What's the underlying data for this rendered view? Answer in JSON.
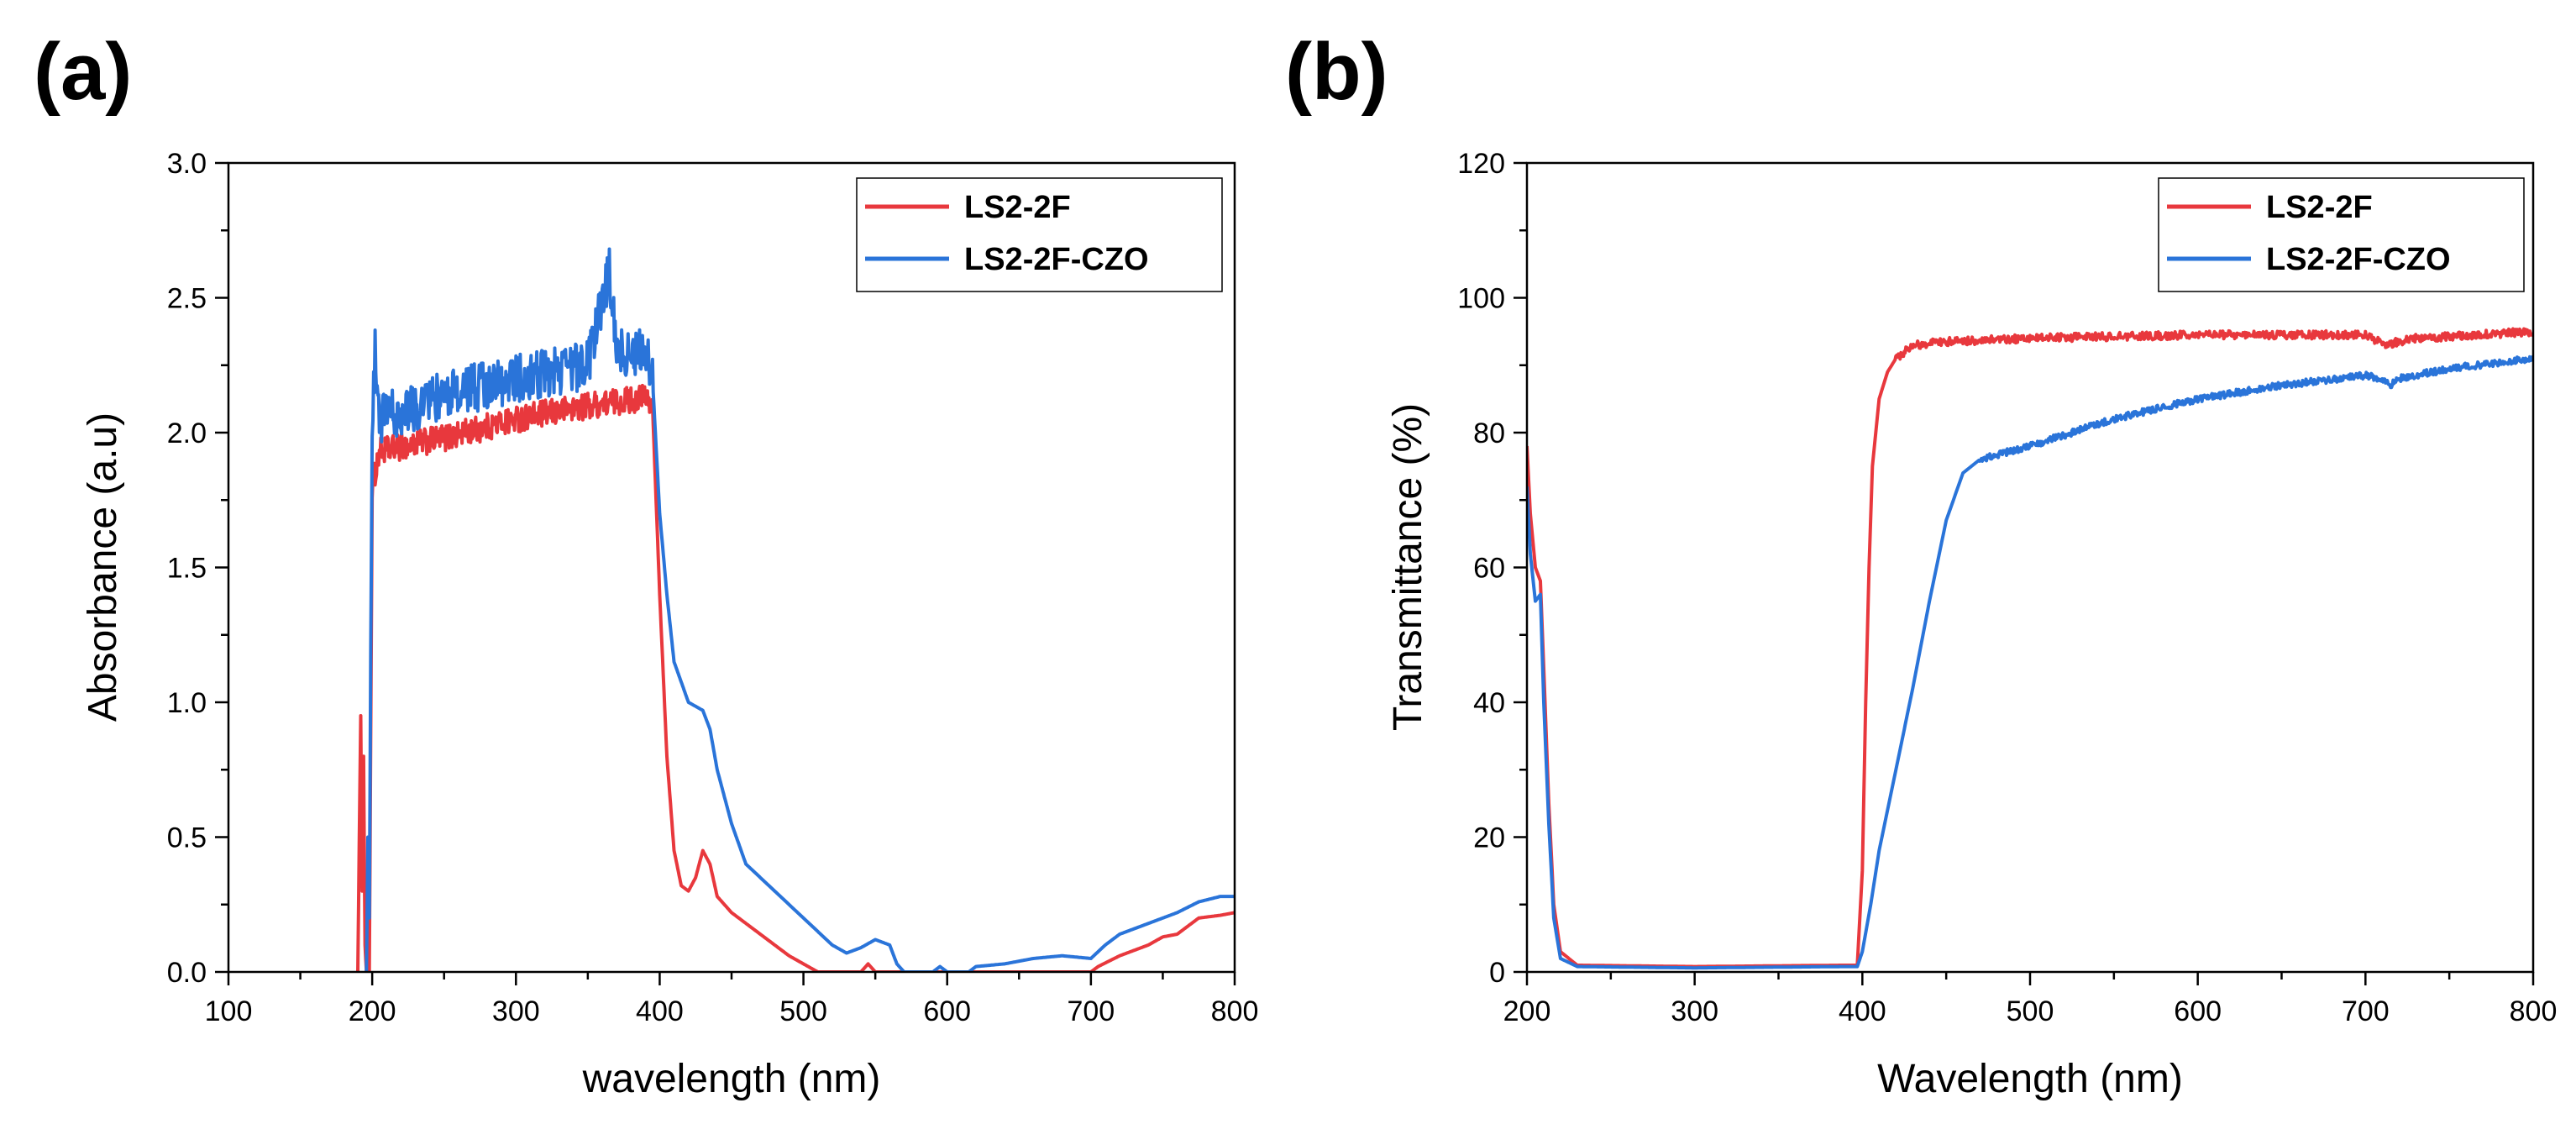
{
  "colors": {
    "red": "#e8383d",
    "blue": "#2a74d9"
  },
  "chart_data": [
    {
      "panel": "(a)",
      "type": "line",
      "title": "",
      "xlabel": "wavelength (nm)",
      "ylabel": "Absorbance (a.u)",
      "xlim": [
        100,
        800
      ],
      "ylim": [
        0,
        3.0
      ],
      "xticks": [
        100,
        200,
        300,
        400,
        500,
        600,
        700,
        800
      ],
      "xtick_labels": [
        "100",
        "200",
        "300",
        "400",
        "500",
        "600",
        "700",
        "800"
      ],
      "yticks": [
        0,
        0.5,
        1.0,
        1.5,
        2.0,
        2.5,
        3.0
      ],
      "ytick_labels": [
        "0.0",
        "0.5",
        "1.0",
        "1.5",
        "2.0",
        "2.5",
        "3.0"
      ],
      "legend_position": "top-right",
      "series": [
        {
          "name": "LS2-2F",
          "color": "#e8383d",
          "noise": 0.05,
          "noise_range": [
            200,
            395
          ],
          "points": [
            [
              190,
              0
            ],
            [
              192,
              0.95
            ],
            [
              193,
              0.3
            ],
            [
              194,
              0.8
            ],
            [
              195,
              0.1
            ],
            [
              196,
              0
            ],
            [
              198,
              0
            ],
            [
              200,
              1.8
            ],
            [
              205,
              1.93
            ],
            [
              250,
              1.98
            ],
            [
              300,
              2.05
            ],
            [
              350,
              2.1
            ],
            [
              390,
              2.13
            ],
            [
              395,
              2.1
            ],
            [
              400,
              1.4
            ],
            [
              405,
              0.8
            ],
            [
              410,
              0.45
            ],
            [
              415,
              0.32
            ],
            [
              420,
              0.3
            ],
            [
              425,
              0.35
            ],
            [
              430,
              0.45
            ],
            [
              435,
              0.4
            ],
            [
              440,
              0.28
            ],
            [
              450,
              0.22
            ],
            [
              460,
              0.18
            ],
            [
              470,
              0.14
            ],
            [
              480,
              0.1
            ],
            [
              490,
              0.06
            ],
            [
              500,
              0.03
            ],
            [
              510,
              0
            ],
            [
              540,
              0
            ],
            [
              545,
              0.03
            ],
            [
              550,
              0
            ],
            [
              700,
              0
            ],
            [
              705,
              0.02
            ],
            [
              720,
              0.06
            ],
            [
              740,
              0.1
            ],
            [
              750,
              0.13
            ],
            [
              760,
              0.14
            ],
            [
              775,
              0.2
            ],
            [
              790,
              0.21
            ],
            [
              800,
              0.22
            ]
          ]
        },
        {
          "name": "LS2-2F-CZO",
          "color": "#2a74d9",
          "noise": 0.09,
          "noise_range": [
            200,
            395
          ],
          "points": [
            [
              196,
              0
            ],
            [
              197,
              0.5
            ],
            [
              198,
              0.2
            ],
            [
              199,
              1.2
            ],
            [
              200,
              2.0
            ],
            [
              202,
              2.3
            ],
            [
              205,
              2.05
            ],
            [
              220,
              2.08
            ],
            [
              250,
              2.14
            ],
            [
              300,
              2.2
            ],
            [
              350,
              2.25
            ],
            [
              365,
              2.6
            ],
            [
              370,
              2.3
            ],
            [
              390,
              2.3
            ],
            [
              395,
              2.2
            ],
            [
              400,
              1.7
            ],
            [
              405,
              1.4
            ],
            [
              410,
              1.15
            ],
            [
              420,
              1.0
            ],
            [
              430,
              0.97
            ],
            [
              435,
              0.9
            ],
            [
              440,
              0.75
            ],
            [
              450,
              0.55
            ],
            [
              460,
              0.4
            ],
            [
              470,
              0.35
            ],
            [
              480,
              0.3
            ],
            [
              490,
              0.25
            ],
            [
              500,
              0.2
            ],
            [
              510,
              0.15
            ],
            [
              520,
              0.1
            ],
            [
              530,
              0.07
            ],
            [
              540,
              0.09
            ],
            [
              550,
              0.12
            ],
            [
              560,
              0.1
            ],
            [
              565,
              0.03
            ],
            [
              570,
              0
            ],
            [
              590,
              0
            ],
            [
              595,
              0.02
            ],
            [
              600,
              0
            ],
            [
              615,
              0
            ],
            [
              620,
              0.02
            ],
            [
              640,
              0.03
            ],
            [
              660,
              0.05
            ],
            [
              680,
              0.06
            ],
            [
              700,
              0.05
            ],
            [
              710,
              0.1
            ],
            [
              720,
              0.14
            ],
            [
              740,
              0.18
            ],
            [
              760,
              0.22
            ],
            [
              775,
              0.26
            ],
            [
              790,
              0.28
            ],
            [
              800,
              0.28
            ]
          ]
        }
      ]
    },
    {
      "panel": "(b)",
      "type": "line",
      "title": "",
      "xlabel": "Wavelength (nm)",
      "ylabel": "Transmittance (%)",
      "xlim": [
        200,
        800
      ],
      "ylim": [
        0,
        120
      ],
      "xticks": [
        200,
        300,
        400,
        500,
        600,
        700,
        800
      ],
      "xtick_labels": [
        "200",
        "300",
        "400",
        "500",
        "600",
        "700",
        "800"
      ],
      "yticks": [
        0,
        20,
        40,
        60,
        80,
        100,
        120
      ],
      "ytick_labels": [
        "0",
        "20",
        "40",
        "60",
        "80",
        "100",
        "120"
      ],
      "legend_position": "top-right",
      "series": [
        {
          "name": "LS2-2F",
          "color": "#e8383d",
          "noise": 0.6,
          "noise_range": [
            420,
            800
          ],
          "points": [
            [
              200,
              78
            ],
            [
              202,
              68
            ],
            [
              205,
              60
            ],
            [
              208,
              58
            ],
            [
              210,
              45
            ],
            [
              213,
              25
            ],
            [
              216,
              10
            ],
            [
              220,
              3
            ],
            [
              230,
              1
            ],
            [
              300,
              0.8
            ],
            [
              390,
              1
            ],
            [
              397,
              1
            ],
            [
              400,
              15
            ],
            [
              402,
              40
            ],
            [
              404,
              60
            ],
            [
              406,
              75
            ],
            [
              410,
              85
            ],
            [
              415,
              89
            ],
            [
              420,
              91
            ],
            [
              430,
              93
            ],
            [
              450,
              93.5
            ],
            [
              500,
              94
            ],
            [
              600,
              94.5
            ],
            [
              700,
              94.5
            ],
            [
              712,
              93
            ],
            [
              720,
              93.5
            ],
            [
              730,
              94
            ],
            [
              800,
              95
            ]
          ]
        },
        {
          "name": "LS2-2F-CZO",
          "color": "#2a74d9",
          "noise": 0.5,
          "noise_range": [
            470,
            800
          ],
          "points": [
            [
              200,
              72
            ],
            [
              202,
              62
            ],
            [
              205,
              55
            ],
            [
              208,
              56
            ],
            [
              210,
              40
            ],
            [
              213,
              22
            ],
            [
              216,
              8
            ],
            [
              220,
              2
            ],
            [
              230,
              0.8
            ],
            [
              300,
              0.6
            ],
            [
              390,
              0.8
            ],
            [
              397,
              0.8
            ],
            [
              400,
              3
            ],
            [
              405,
              10
            ],
            [
              410,
              18
            ],
            [
              420,
              30
            ],
            [
              430,
              42
            ],
            [
              440,
              55
            ],
            [
              450,
              67
            ],
            [
              460,
              74
            ],
            [
              470,
              76
            ],
            [
              500,
              78
            ],
            [
              550,
              82
            ],
            [
              600,
              85
            ],
            [
              650,
              87
            ],
            [
              700,
              88.5
            ],
            [
              710,
              88
            ],
            [
              715,
              87
            ],
            [
              720,
              88
            ],
            [
              750,
              89.5
            ],
            [
              800,
              91
            ]
          ]
        }
      ]
    }
  ]
}
